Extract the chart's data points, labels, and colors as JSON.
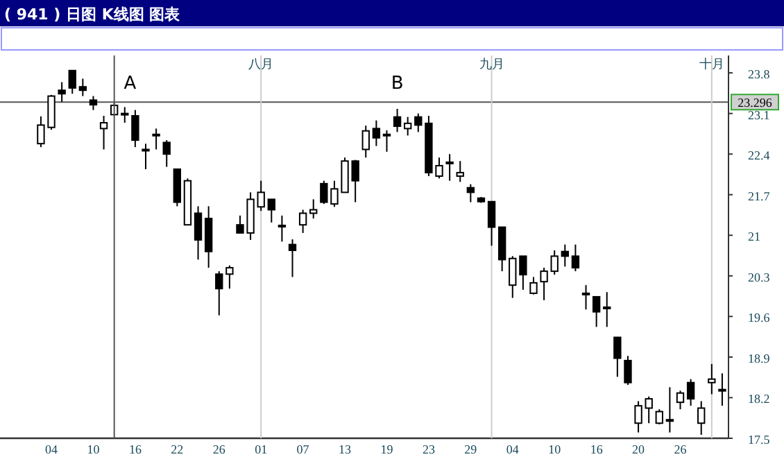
{
  "chart_data": {
    "type": "candlestick",
    "title": "( 941 ) 日图 K线图 图表",
    "categories": [
      null,
      "04",
      null,
      null,
      null,
      "10",
      null,
      null,
      null,
      "16",
      null,
      null,
      null,
      "22",
      null,
      null,
      null,
      "26",
      null,
      null,
      null,
      "01",
      null,
      null,
      null,
      "07",
      null,
      null,
      null,
      "13",
      null,
      null,
      null,
      "19",
      null,
      null,
      null,
      "23",
      null,
      null,
      null,
      "29",
      null,
      null,
      null,
      "04",
      null,
      null,
      null,
      "10",
      null,
      null,
      null,
      "16",
      null,
      null,
      null,
      "20",
      null,
      null,
      null,
      "26",
      null,
      null,
      null,
      null
    ],
    "ohlc": [
      [
        22.58,
        23.05,
        22.52,
        22.9
      ],
      [
        22.86,
        23.42,
        22.82,
        23.4
      ],
      [
        23.5,
        23.64,
        23.3,
        23.44
      ],
      [
        23.84,
        23.84,
        23.44,
        23.54
      ],
      [
        23.56,
        23.7,
        23.4,
        23.5
      ],
      [
        23.33,
        23.4,
        23.16,
        23.25
      ],
      [
        22.84,
        23.06,
        22.48,
        22.94
      ],
      [
        23.08,
        23.28,
        23.06,
        23.24
      ],
      [
        23.1,
        23.21,
        22.94,
        23.1
      ],
      [
        23.06,
        23.16,
        22.52,
        22.64
      ],
      [
        22.48,
        22.58,
        22.14,
        22.48
      ],
      [
        22.74,
        22.84,
        22.48,
        22.74
      ],
      [
        22.6,
        22.64,
        22.18,
        22.4
      ],
      [
        22.14,
        22.14,
        21.5,
        21.57
      ],
      [
        21.18,
        21.98,
        21.18,
        21.94
      ],
      [
        21.38,
        21.5,
        20.58,
        20.92
      ],
      [
        21.29,
        21.5,
        20.44,
        20.72
      ],
      [
        20.33,
        20.38,
        19.62,
        20.08
      ],
      [
        20.33,
        20.48,
        20.08,
        20.44
      ],
      [
        21.18,
        21.34,
        21.04,
        21.04
      ],
      [
        21.04,
        21.74,
        20.92,
        21.62
      ],
      [
        21.49,
        21.94,
        21.42,
        21.74
      ],
      [
        21.62,
        21.62,
        21.22,
        21.44
      ],
      [
        21.17,
        21.34,
        20.89,
        21.17
      ],
      [
        20.84,
        20.93,
        20.28,
        20.74
      ],
      [
        21.18,
        21.44,
        21.04,
        21.38
      ],
      [
        21.38,
        21.62,
        21.29,
        21.44
      ],
      [
        21.89,
        21.94,
        21.54,
        21.57
      ],
      [
        21.54,
        21.94,
        21.49,
        21.8
      ],
      [
        21.74,
        22.34,
        21.74,
        22.28
      ],
      [
        22.28,
        22.3,
        21.57,
        21.94
      ],
      [
        22.48,
        22.89,
        22.34,
        22.8
      ],
      [
        22.84,
        22.98,
        22.54,
        22.68
      ],
      [
        22.74,
        22.81,
        22.44,
        22.74
      ],
      [
        23.04,
        23.18,
        22.78,
        22.88
      ],
      [
        22.84,
        23.04,
        22.72,
        22.93
      ],
      [
        23.04,
        23.1,
        22.78,
        22.9
      ],
      [
        22.93,
        23.06,
        22.02,
        22.08
      ],
      [
        22.02,
        22.34,
        21.98,
        22.2
      ],
      [
        22.26,
        22.4,
        21.94,
        22.26
      ],
      [
        22.02,
        22.28,
        21.92,
        22.08
      ],
      [
        21.82,
        21.88,
        21.57,
        21.74
      ],
      [
        21.64,
        21.66,
        21.56,
        21.58
      ],
      [
        21.58,
        21.58,
        20.82,
        21.14
      ],
      [
        21.14,
        21.14,
        20.38,
        20.58
      ],
      [
        20.14,
        20.64,
        19.92,
        20.6
      ],
      [
        20.64,
        20.64,
        20.06,
        20.32
      ],
      [
        20.0,
        20.28,
        19.98,
        20.18
      ],
      [
        20.2,
        20.44,
        19.88,
        20.38
      ],
      [
        20.38,
        20.74,
        20.32,
        20.64
      ],
      [
        20.72,
        20.84,
        20.46,
        20.64
      ],
      [
        20.64,
        20.84,
        20.38,
        20.44
      ],
      [
        20.0,
        20.14,
        19.72,
        20.0
      ],
      [
        19.94,
        19.94,
        19.42,
        19.68
      ],
      [
        19.76,
        20.02,
        19.42,
        19.76
      ],
      [
        19.24,
        19.24,
        18.56,
        18.88
      ],
      [
        18.84,
        18.92,
        18.42,
        18.46
      ],
      [
        17.76,
        18.14,
        17.6,
        18.06
      ],
      [
        18.02,
        18.22,
        17.76,
        18.18
      ],
      [
        17.76,
        18.0,
        17.74,
        17.96
      ],
      [
        17.82,
        18.38,
        17.6,
        17.82
      ],
      [
        18.12,
        18.32,
        18.0,
        18.28
      ],
      [
        18.46,
        18.52,
        18.06,
        18.18
      ],
      [
        17.76,
        18.14,
        17.56,
        18.02
      ],
      [
        18.46,
        18.78,
        18.26,
        18.52
      ],
      [
        18.34,
        18.62,
        18.06,
        18.34
      ]
    ],
    "ylim": [
      17.5,
      24.1
    ],
    "yticks": [
      17.5,
      18.2,
      18.9,
      19.6,
      20.3,
      21,
      21.7,
      22.4,
      23.1,
      23.8
    ],
    "ref_lines": [
      {
        "axis": "y",
        "value": 23.296,
        "label": "23.296",
        "color": "#555555"
      }
    ],
    "annotations": [
      "A",
      "B",
      "八月",
      "九月",
      "十月"
    ]
  }
}
